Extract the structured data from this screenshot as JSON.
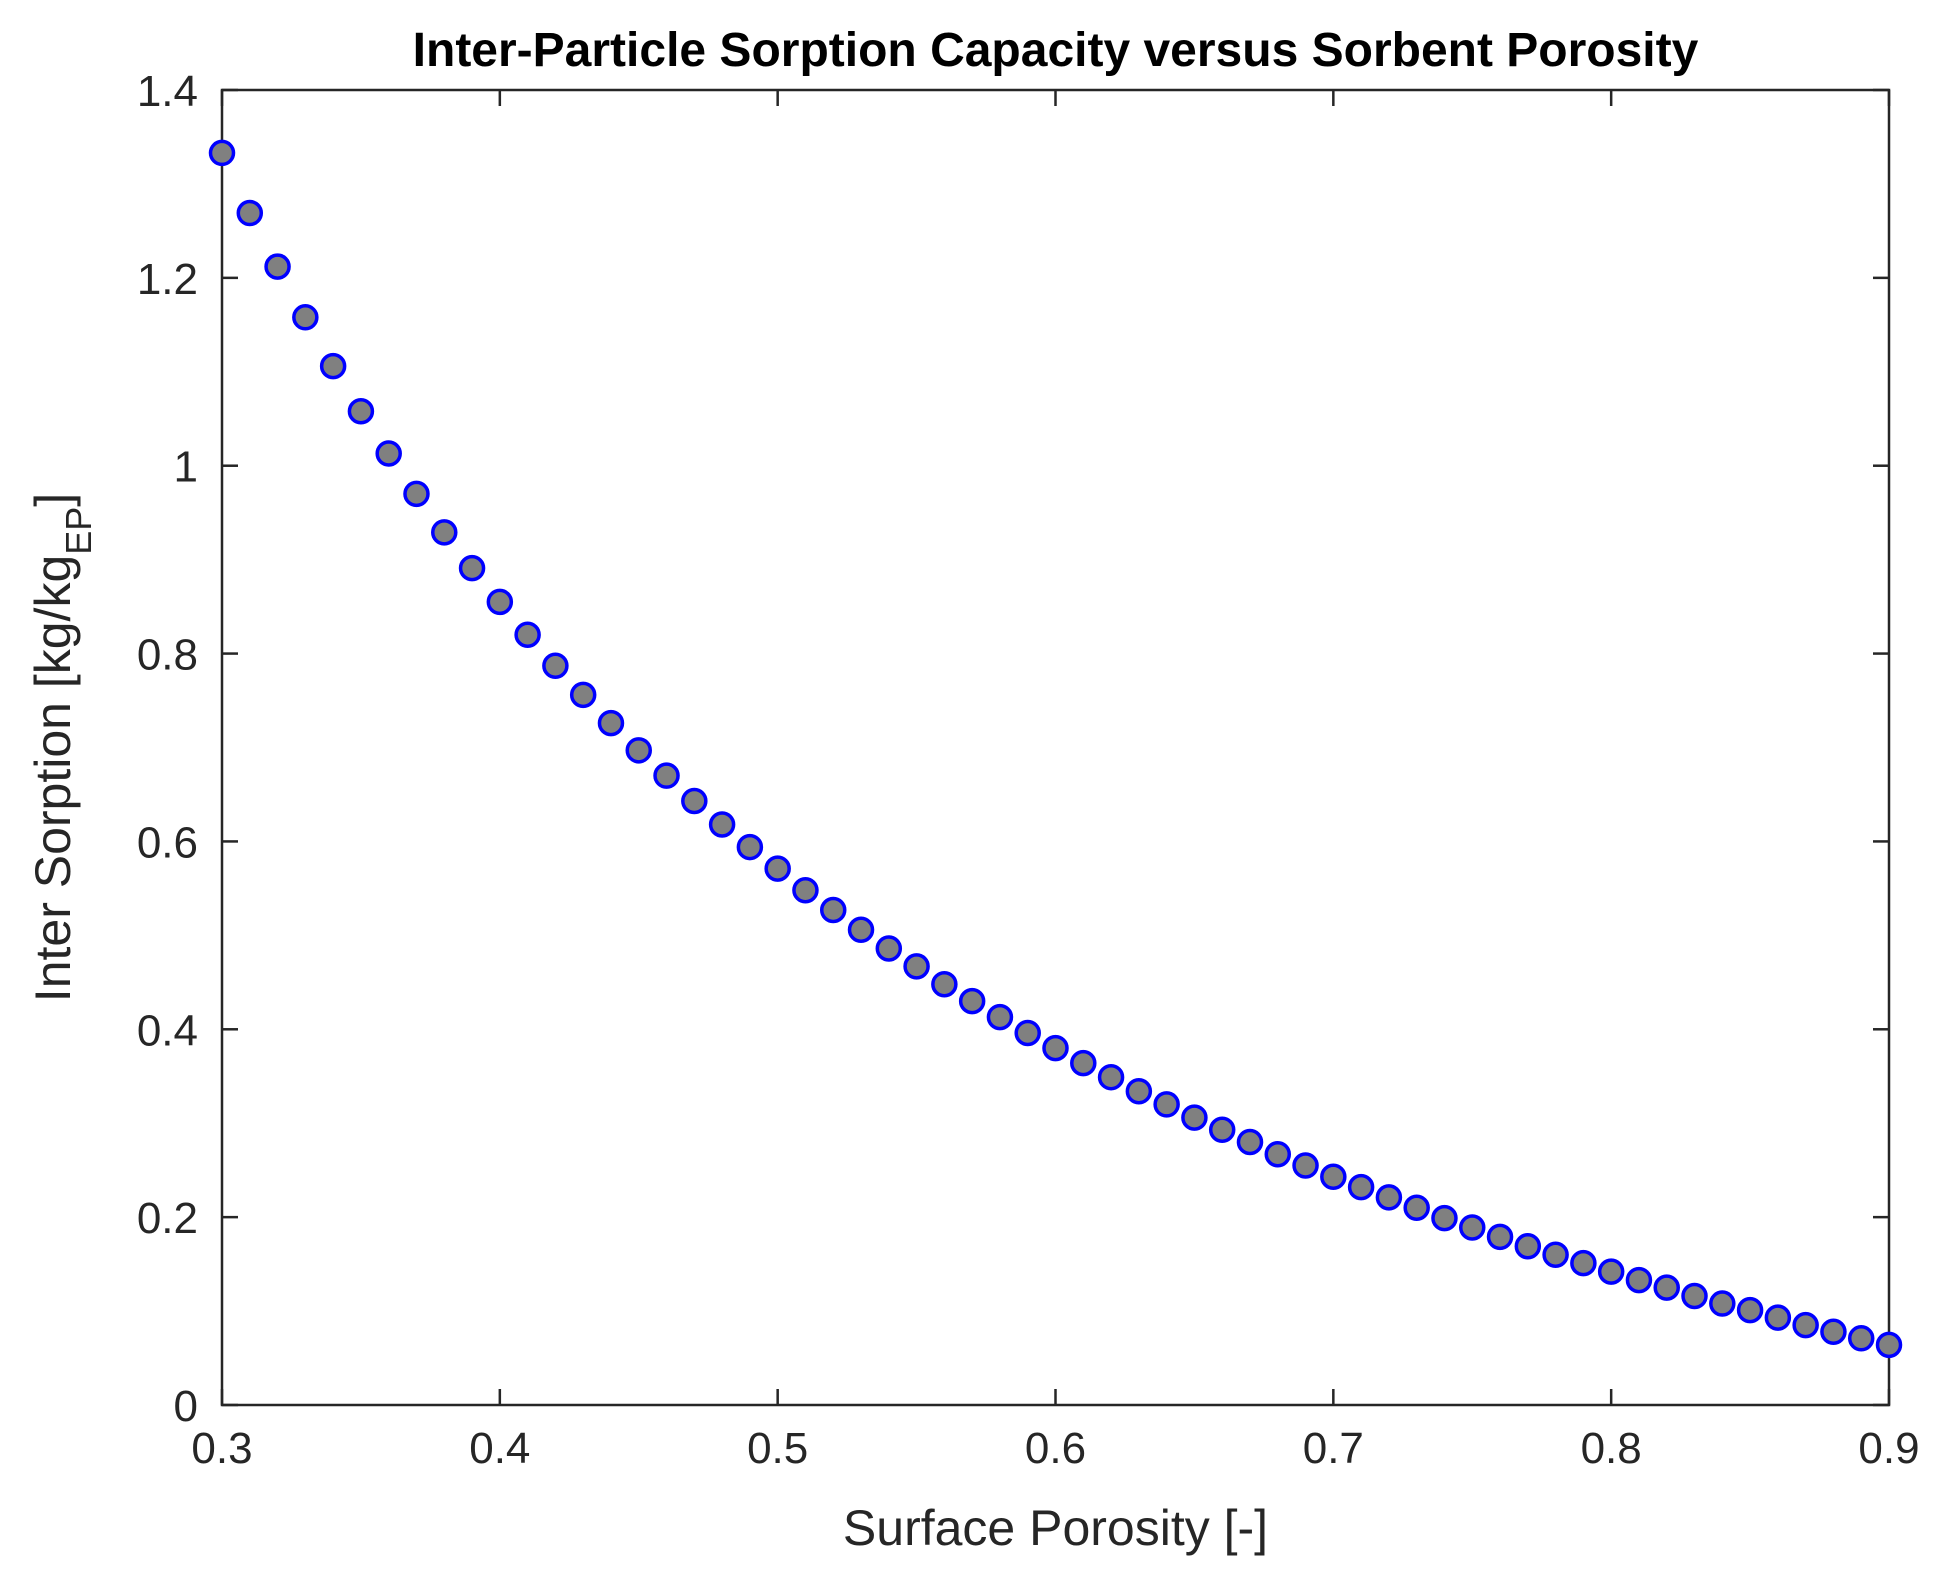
{
  "chart_data": {
    "type": "scatter",
    "title": "Inter-Particle Sorption Capacity versus Sorbent Porosity",
    "xlabel": "Surface Porosity  [-]",
    "ylabel_main": "Inter Sorption [kg/kg",
    "ylabel_sub": "EP",
    "ylabel_close": "]",
    "xlim": [
      0.3,
      0.9
    ],
    "ylim": [
      0,
      1.4
    ],
    "xticks": [
      0.3,
      0.4,
      0.5,
      0.6,
      0.7,
      0.8,
      0.9
    ],
    "yticks": [
      0,
      0.2,
      0.4,
      0.6,
      0.8,
      1,
      1.2,
      1.4
    ],
    "xtick_labels": [
      "0.3",
      "0.4",
      "0.5",
      "0.6",
      "0.7",
      "0.8",
      "0.9"
    ],
    "ytick_labels": [
      "0",
      "0.2",
      "0.4",
      "0.6",
      "0.8",
      "1",
      "1.2",
      "1.4"
    ],
    "grid": false,
    "marker_face_color": "#808080",
    "marker_edge_color": "#0000ff",
    "series": [
      {
        "x": [
          0.3,
          0.31,
          0.32,
          0.33,
          0.34,
          0.35,
          0.36,
          0.37,
          0.38,
          0.39,
          0.4,
          0.41,
          0.42,
          0.43,
          0.44,
          0.45,
          0.46,
          0.47,
          0.48,
          0.49,
          0.5,
          0.51,
          0.52,
          0.53,
          0.54,
          0.55,
          0.56,
          0.57,
          0.58,
          0.59,
          0.6,
          0.61,
          0.62,
          0.63,
          0.64,
          0.65,
          0.66,
          0.67,
          0.68,
          0.69,
          0.7,
          0.71,
          0.72,
          0.73,
          0.74,
          0.75,
          0.76,
          0.77,
          0.78,
          0.79,
          0.8,
          0.81,
          0.82,
          0.83,
          0.84,
          0.85,
          0.86,
          0.87,
          0.88,
          0.89,
          0.9
        ],
        "y": [
          1.333,
          1.269,
          1.212,
          1.158,
          1.106,
          1.058,
          1.013,
          0.97,
          0.929,
          0.891,
          0.855,
          0.82,
          0.787,
          0.756,
          0.726,
          0.697,
          0.67,
          0.643,
          0.618,
          0.594,
          0.571,
          0.548,
          0.527,
          0.506,
          0.486,
          0.467,
          0.448,
          0.43,
          0.413,
          0.396,
          0.38,
          0.364,
          0.349,
          0.334,
          0.32,
          0.306,
          0.293,
          0.28,
          0.267,
          0.255,
          0.243,
          0.232,
          0.221,
          0.21,
          0.199,
          0.189,
          0.179,
          0.169,
          0.16,
          0.151,
          0.142,
          0.133,
          0.125,
          0.116,
          0.108,
          0.101,
          0.093,
          0.085,
          0.078,
          0.071,
          0.064
        ]
      }
    ]
  }
}
